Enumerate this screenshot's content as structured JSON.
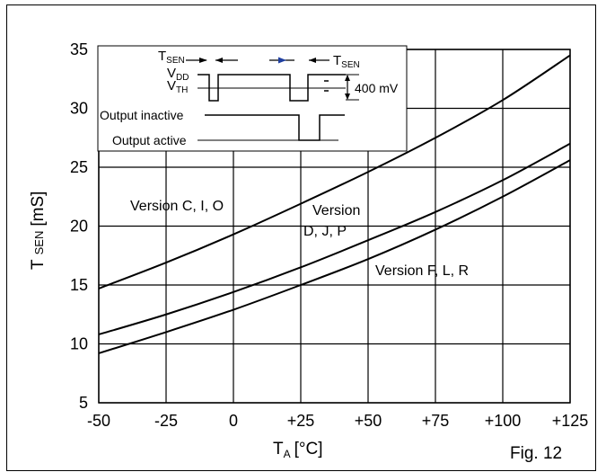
{
  "chart_data": {
    "type": "line",
    "xlabel_main": "T",
    "xlabel_sub": "A",
    "xlabel_unit": "[°C]",
    "ylabel_main": "T",
    "ylabel_sub": "SEN",
    "ylabel_unit": "[mS]",
    "xlim": [
      -50,
      125
    ],
    "ylim": [
      5,
      35
    ],
    "x_ticks": [
      -50,
      -25,
      0,
      25,
      50,
      75,
      100,
      125
    ],
    "x_tick_labels": [
      "-50",
      "-25",
      "0",
      "+25",
      "+50",
      "+75",
      "+100",
      "+125"
    ],
    "y_ticks": [
      5,
      10,
      15,
      20,
      25,
      30,
      35
    ],
    "y_tick_labels": [
      "5",
      "10",
      "15",
      "20",
      "25",
      "30",
      "35"
    ],
    "grid": true,
    "figure_label": "Fig. 12",
    "series": [
      {
        "name": "Version C, I, O",
        "x": [
          -50,
          -25,
          0,
          25,
          50,
          75,
          100,
          125
        ],
        "y": [
          14.7,
          16.9,
          19.3,
          21.9,
          24.6,
          27.5,
          30.7,
          34.5
        ]
      },
      {
        "name_line1": "Version",
        "name_line2": "D, J, P",
        "x": [
          -50,
          -25,
          0,
          25,
          50,
          75,
          100,
          125
        ],
        "y": [
          10.8,
          12.5,
          14.4,
          16.5,
          18.8,
          21.2,
          23.9,
          27.0
        ]
      },
      {
        "name": "Version F, L, R",
        "x": [
          -50,
          -25,
          0,
          25,
          50,
          75,
          100,
          125
        ],
        "y": [
          9.2,
          11.0,
          12.9,
          15.0,
          17.2,
          19.7,
          22.5,
          25.6
        ]
      }
    ],
    "inset": {
      "tsen_left_main": "T",
      "tsen_left_sub": "SEN",
      "tsen_right_main": "T",
      "tsen_right_sub": "SEN",
      "vdd_main": "V",
      "vdd_sub": "DD",
      "vth_main": "V",
      "vth_sub": "TH",
      "voltage_label": "400 mV",
      "output_inactive": "Output inactive",
      "output_active": "Output active",
      "marker_accent_color": "#1f3fa0"
    }
  }
}
